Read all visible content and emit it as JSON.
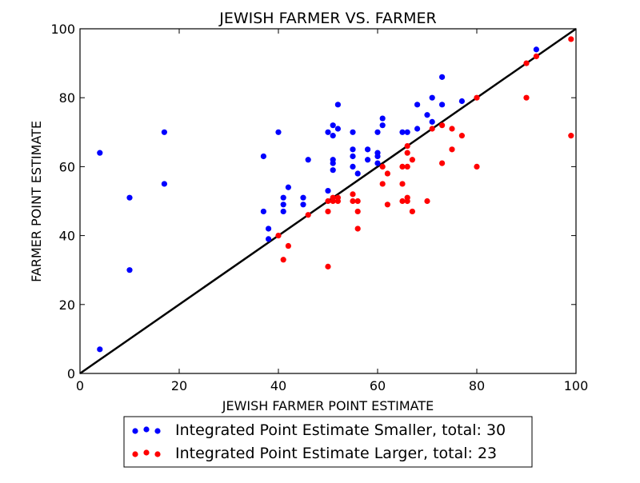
{
  "chart_data": {
    "type": "scatter",
    "title": "JEWISH FARMER VS. FARMER",
    "xlabel": "JEWISH FARMER POINT ESTIMATE",
    "ylabel": "FARMER POINT ESTIMATE",
    "xlim": [
      0,
      100
    ],
    "ylim": [
      0,
      100
    ],
    "xticks": [
      0,
      20,
      40,
      60,
      80,
      100
    ],
    "yticks": [
      0,
      20,
      40,
      60,
      80,
      100
    ],
    "xtick_labels": [
      "0",
      "20",
      "40",
      "60",
      "80",
      "100"
    ],
    "ytick_labels": [
      "0",
      "20",
      "40",
      "60",
      "80",
      "100"
    ],
    "grid": false,
    "legend_position": "below",
    "reference_line": {
      "from": [
        0,
        0
      ],
      "to": [
        100,
        100
      ],
      "color": "#000000"
    },
    "series": [
      {
        "name": "Integrated Point Estimate Smaller, total: 30",
        "color": "#0000ff",
        "points": [
          [
            4,
            64
          ],
          [
            4,
            7
          ],
          [
            10,
            51
          ],
          [
            10,
            30
          ],
          [
            17,
            70
          ],
          [
            17,
            55
          ],
          [
            37,
            63
          ],
          [
            37,
            47
          ],
          [
            38,
            42
          ],
          [
            38,
            39
          ],
          [
            40,
            70
          ],
          [
            41,
            51
          ],
          [
            41,
            49
          ],
          [
            41,
            47
          ],
          [
            42,
            54
          ],
          [
            45,
            51
          ],
          [
            45,
            49
          ],
          [
            46,
            62
          ],
          [
            50,
            70
          ],
          [
            50,
            53
          ],
          [
            51,
            72
          ],
          [
            51,
            69
          ],
          [
            51,
            62
          ],
          [
            51,
            61
          ],
          [
            51,
            59
          ],
          [
            52,
            78
          ],
          [
            52,
            71
          ],
          [
            55,
            70
          ],
          [
            55,
            65
          ],
          [
            55,
            63
          ],
          [
            55,
            60
          ],
          [
            56,
            58
          ],
          [
            58,
            65
          ],
          [
            58,
            62
          ],
          [
            60,
            70
          ],
          [
            60,
            64
          ],
          [
            60,
            63
          ],
          [
            60,
            61
          ],
          [
            61,
            74
          ],
          [
            61,
            72
          ],
          [
            65,
            70
          ],
          [
            66,
            70
          ],
          [
            68,
            78
          ],
          [
            68,
            71
          ],
          [
            70,
            75
          ],
          [
            71,
            80
          ],
          [
            71,
            73
          ],
          [
            73,
            86
          ],
          [
            73,
            78
          ],
          [
            77,
            79
          ],
          [
            92,
            94
          ]
        ]
      },
      {
        "name": "Integrated Point Estimate Larger, total: 23",
        "color": "#ff0000",
        "points": [
          [
            40,
            40
          ],
          [
            41,
            33
          ],
          [
            42,
            37
          ],
          [
            46,
            46
          ],
          [
            50,
            50
          ],
          [
            50,
            47
          ],
          [
            50,
            31
          ],
          [
            51,
            51
          ],
          [
            51,
            50
          ],
          [
            52,
            51
          ],
          [
            52,
            50
          ],
          [
            55,
            52
          ],
          [
            55,
            50
          ],
          [
            56,
            50
          ],
          [
            56,
            47
          ],
          [
            56,
            42
          ],
          [
            61,
            60
          ],
          [
            61,
            55
          ],
          [
            62,
            58
          ],
          [
            62,
            49
          ],
          [
            65,
            60
          ],
          [
            65,
            55
          ],
          [
            65,
            50
          ],
          [
            66,
            66
          ],
          [
            66,
            64
          ],
          [
            66,
            60
          ],
          [
            66,
            51
          ],
          [
            66,
            50
          ],
          [
            67,
            62
          ],
          [
            67,
            47
          ],
          [
            70,
            50
          ],
          [
            71,
            71
          ],
          [
            73,
            72
          ],
          [
            73,
            61
          ],
          [
            75,
            71
          ],
          [
            75,
            65
          ],
          [
            77,
            69
          ],
          [
            80,
            80
          ],
          [
            80,
            60
          ],
          [
            90,
            90
          ],
          [
            90,
            80
          ],
          [
            92,
            92
          ],
          [
            99,
            97
          ],
          [
            99,
            69
          ]
        ]
      }
    ]
  }
}
